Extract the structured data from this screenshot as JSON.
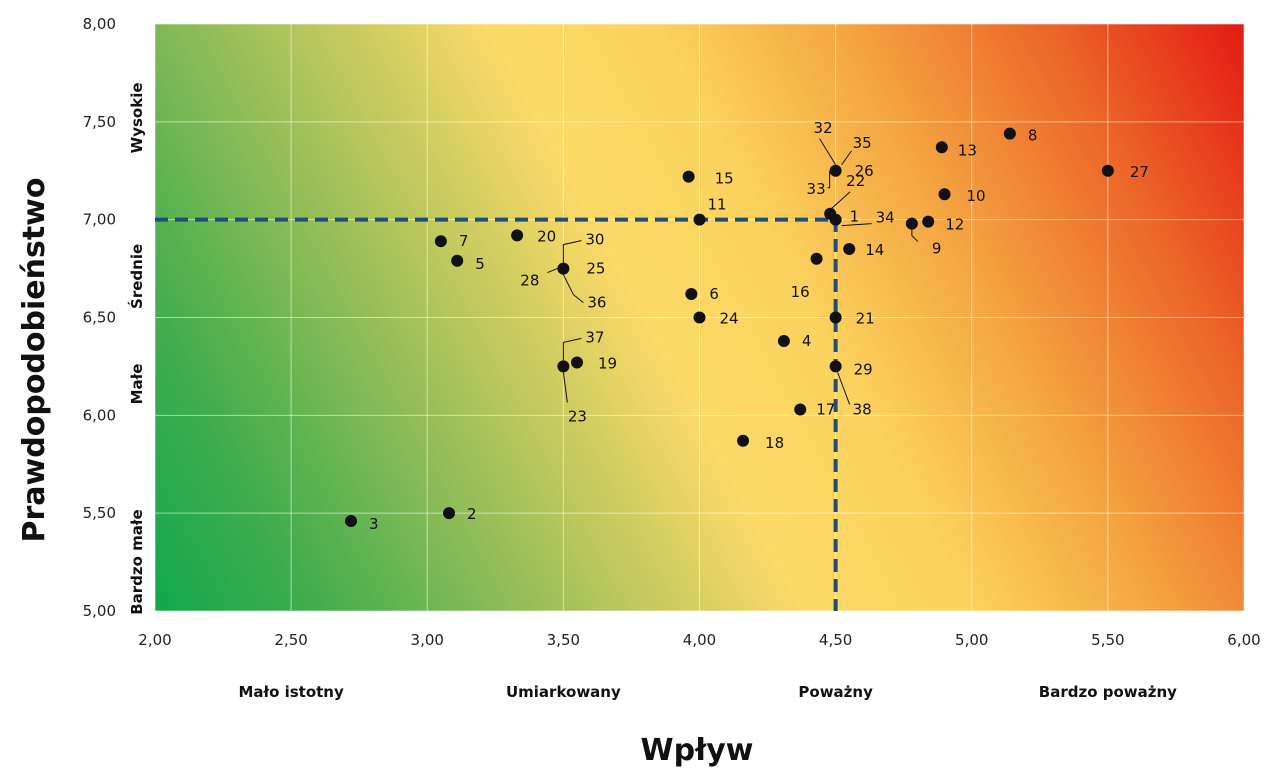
{
  "chart_data": {
    "type": "scatter",
    "title": "",
    "xlabel": "Wpływ",
    "ylabel": "Prawdopodobieństwo",
    "xlim": [
      2.0,
      6.0
    ],
    "ylim": [
      5.0,
      8.0
    ],
    "x_ticks": [
      "2,00",
      "2,50",
      "3,00",
      "3,50",
      "4,00",
      "4,50",
      "5,00",
      "5,50",
      "6,00"
    ],
    "y_ticks": [
      "5,00",
      "5,50",
      "6,00",
      "6,50",
      "7,00",
      "7,50",
      "8,00"
    ],
    "x_categories": [
      "Mało istotny",
      "Umiarkowany",
      "Poważny",
      "Bardzo poważny"
    ],
    "y_categories": [
      "Bardzo małe",
      "Małe",
      "Średnie",
      "Wysokie"
    ],
    "grid": true,
    "background": "risk gradient: green (low impact, low probability) to red (high impact, high probability)",
    "thresholds": {
      "x": 4.5,
      "y": 7.0
    },
    "points": [
      {
        "id": "1",
        "x": 4.5,
        "y": 7.0
      },
      {
        "id": "2",
        "x": 3.08,
        "y": 5.5
      },
      {
        "id": "3",
        "x": 2.72,
        "y": 5.46
      },
      {
        "id": "4",
        "x": 4.31,
        "y": 6.38
      },
      {
        "id": "5",
        "x": 3.11,
        "y": 6.79
      },
      {
        "id": "6",
        "x": 3.97,
        "y": 6.62
      },
      {
        "id": "7",
        "x": 3.05,
        "y": 6.89
      },
      {
        "id": "8",
        "x": 5.14,
        "y": 7.44
      },
      {
        "id": "9",
        "x": 4.78,
        "y": 6.98
      },
      {
        "id": "10",
        "x": 4.9,
        "y": 7.13
      },
      {
        "id": "11",
        "x": 4.0,
        "y": 7.0
      },
      {
        "id": "12",
        "x": 4.84,
        "y": 6.99
      },
      {
        "id": "13",
        "x": 4.89,
        "y": 7.37
      },
      {
        "id": "14",
        "x": 4.55,
        "y": 6.85
      },
      {
        "id": "15",
        "x": 3.96,
        "y": 7.22
      },
      {
        "id": "16",
        "x": 4.43,
        "y": 6.8
      },
      {
        "id": "17",
        "x": 4.37,
        "y": 6.03
      },
      {
        "id": "18",
        "x": 4.16,
        "y": 5.87
      },
      {
        "id": "19",
        "x": 3.55,
        "y": 6.27
      },
      {
        "id": "20",
        "x": 3.33,
        "y": 6.92
      },
      {
        "id": "21",
        "x": 4.5,
        "y": 6.5
      },
      {
        "id": "22",
        "x": 4.48,
        "y": 7.03
      },
      {
        "id": "23",
        "x": 3.5,
        "y": 6.25
      },
      {
        "id": "24",
        "x": 4.0,
        "y": 6.5
      },
      {
        "id": "25",
        "x": 3.5,
        "y": 6.75
      },
      {
        "id": "26",
        "x": 4.5,
        "y": 7.25
      },
      {
        "id": "27",
        "x": 5.5,
        "y": 7.25
      },
      {
        "id": "28",
        "x": 3.5,
        "y": 6.75
      },
      {
        "id": "29",
        "x": 4.5,
        "y": 6.25
      },
      {
        "id": "30",
        "x": 3.5,
        "y": 6.75
      },
      {
        "id": "32",
        "x": 4.5,
        "y": 7.25
      },
      {
        "id": "33",
        "x": 4.5,
        "y": 7.25
      },
      {
        "id": "34",
        "x": 4.5,
        "y": 7.0
      },
      {
        "id": "35",
        "x": 4.5,
        "y": 7.25
      },
      {
        "id": "36",
        "x": 3.5,
        "y": 6.75
      },
      {
        "id": "37",
        "x": 3.5,
        "y": 6.25
      },
      {
        "id": "38",
        "x": 4.5,
        "y": 6.25
      }
    ]
  }
}
